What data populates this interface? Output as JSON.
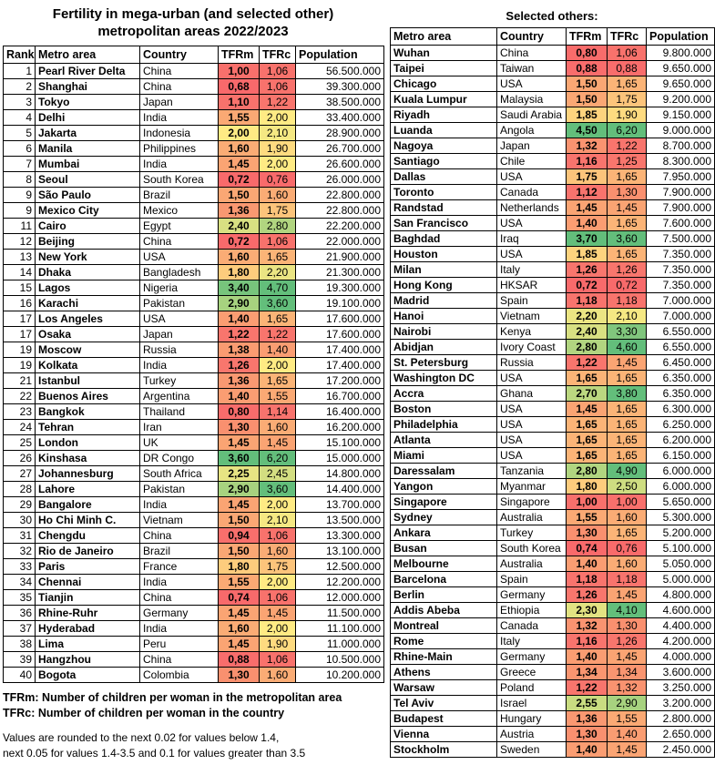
{
  "title_line1": "Fertility in mega-urban (and selected other)",
  "title_line2": "metropolitan areas 2022/2023",
  "right_heading": "Selected others:",
  "footnotes": {
    "tfrm_legend": "TFRm: Number of children per woman in the metropolitan area",
    "tfrc_legend": "TFRc: Number of children per woman in the country",
    "rounding_line1": "Values are rounded to the next 0.02 for values below 1.4,",
    "rounding_line2": "next 0.05 for values 1.4-3.5 and 0.1 for values greater than 3.5"
  },
  "colors": {
    "scale_red": "#F8696B",
    "scale_yellow": "#FFEB84",
    "scale_green": "#63BE7B",
    "border": "#000000",
    "scale_stops": [
      {
        "value": 0.68,
        "hex": "#F8696B"
      },
      {
        "value": 1.26,
        "hex": "#F8766D"
      },
      {
        "value": 1.3,
        "hex": "#F9906F"
      },
      {
        "value": 1.45,
        "hex": "#FAA473"
      },
      {
        "value": 1.6,
        "hex": "#FAAC75"
      },
      {
        "value": 2.0,
        "hex": "#FFEB84"
      },
      {
        "value": 3.6,
        "hex": "#63BE7B"
      }
    ]
  },
  "chart_data": [
    {
      "type": "table",
      "title": "Fertility in mega-urban (and selected other) metropolitan areas 2022/2023",
      "columns": [
        "Rank",
        "Metro area",
        "Country",
        "TFRm",
        "TFRc",
        "Population"
      ],
      "rows": [
        [
          "1",
          "Pearl River Delta",
          "China",
          "1,00",
          "1,06",
          "56.500.000"
        ],
        [
          "2",
          "Shanghai",
          "China",
          "0,68",
          "1,06",
          "39.300.000"
        ],
        [
          "3",
          "Tokyo",
          "Japan",
          "1,10",
          "1,22",
          "38.500.000"
        ],
        [
          "4",
          "Delhi",
          "India",
          "1,55",
          "2,00",
          "33.400.000"
        ],
        [
          "5",
          "Jakarta",
          "Indonesia",
          "2,00",
          "2,10",
          "28.900.000"
        ],
        [
          "6",
          "Manila",
          "Philippines",
          "1,60",
          "1,90",
          "26.700.000"
        ],
        [
          "7",
          "Mumbai",
          "India",
          "1,45",
          "2,00",
          "26.600.000"
        ],
        [
          "8",
          "Seoul",
          "South Korea",
          "0,72",
          "0,76",
          "26.000.000"
        ],
        [
          "9",
          "São Paulo",
          "Brazil",
          "1,50",
          "1,60",
          "22.800.000"
        ],
        [
          "9",
          "Mexico City",
          "Mexico",
          "1,36",
          "1,75",
          "22.800.000"
        ],
        [
          "11",
          "Cairo",
          "Egypt",
          "2,40",
          "2,80",
          "22.200.000"
        ],
        [
          "12",
          "Beijing",
          "China",
          "0,72",
          "1,06",
          "22.000.000"
        ],
        [
          "13",
          "New York",
          "USA",
          "1,60",
          "1,65",
          "21.900.000"
        ],
        [
          "14",
          "Dhaka",
          "Bangladesh",
          "1,80",
          "2,20",
          "21.300.000"
        ],
        [
          "15",
          "Lagos",
          "Nigeria",
          "3,40",
          "4,70",
          "19.300.000"
        ],
        [
          "16",
          "Karachi",
          "Pakistan",
          "2,90",
          "3,60",
          "19.100.000"
        ],
        [
          "17",
          "Los Angeles",
          "USA",
          "1,40",
          "1,65",
          "17.600.000"
        ],
        [
          "17",
          "Osaka",
          "Japan",
          "1,22",
          "1,22",
          "17.600.000"
        ],
        [
          "19",
          "Moscow",
          "Russia",
          "1,38",
          "1,40",
          "17.400.000"
        ],
        [
          "19",
          "Kolkata",
          "India",
          "1,26",
          "2,00",
          "17.400.000"
        ],
        [
          "21",
          "Istanbul",
          "Turkey",
          "1,36",
          "1,65",
          "17.200.000"
        ],
        [
          "22",
          "Buenos Aires",
          "Argentina",
          "1,40",
          "1,55",
          "16.700.000"
        ],
        [
          "23",
          "Bangkok",
          "Thailand",
          "0,80",
          "1,14",
          "16.400.000"
        ],
        [
          "24",
          "Tehran",
          "Iran",
          "1,30",
          "1,60",
          "16.200.000"
        ],
        [
          "25",
          "London",
          "UK",
          "1,45",
          "1,45",
          "15.100.000"
        ],
        [
          "26",
          "Kinshasa",
          "DR Congo",
          "3,60",
          "6,20",
          "15.000.000"
        ],
        [
          "27",
          "Johannesburg",
          "South Africa",
          "2,25",
          "2,45",
          "14.800.000"
        ],
        [
          "28",
          "Lahore",
          "Pakistan",
          "2,90",
          "3,60",
          "14.400.000"
        ],
        [
          "29",
          "Bangalore",
          "India",
          "1,45",
          "2,00",
          "13.700.000"
        ],
        [
          "30",
          "Ho Chi Minh C.",
          "Vietnam",
          "1,50",
          "2,10",
          "13.500.000"
        ],
        [
          "31",
          "Chengdu",
          "China",
          "0,94",
          "1,06",
          "13.300.000"
        ],
        [
          "32",
          "Rio de Janeiro",
          "Brazil",
          "1,50",
          "1,60",
          "13.100.000"
        ],
        [
          "33",
          "Paris",
          "France",
          "1,80",
          "1,75",
          "12.500.000"
        ],
        [
          "34",
          "Chennai",
          "India",
          "1,55",
          "2,00",
          "12.200.000"
        ],
        [
          "35",
          "Tianjin",
          "China",
          "0,74",
          "1,06",
          "12.000.000"
        ],
        [
          "36",
          "Rhine-Ruhr",
          "Germany",
          "1,45",
          "1,45",
          "11.500.000"
        ],
        [
          "37",
          "Hyderabad",
          "India",
          "1,60",
          "2,00",
          "11.100.000"
        ],
        [
          "38",
          "Lima",
          "Peru",
          "1,45",
          "1,90",
          "11.000.000"
        ],
        [
          "39",
          "Hangzhou",
          "China",
          "0,88",
          "1,06",
          "10.500.000"
        ],
        [
          "40",
          "Bogota",
          "Colombia",
          "1,30",
          "1,60",
          "10.200.000"
        ]
      ]
    },
    {
      "type": "table",
      "title": "Selected others:",
      "columns": [
        "Metro area",
        "Country",
        "TFRm",
        "TFRc",
        "Population"
      ],
      "rows": [
        [
          "Wuhan",
          "China",
          "0,80",
          "1,06",
          "9.800.000"
        ],
        [
          "Taipei",
          "Taiwan",
          "0,88",
          "0,88",
          "9.650.000"
        ],
        [
          "Chicago",
          "USA",
          "1,50",
          "1,65",
          "9.650.000"
        ],
        [
          "Kuala Lumpur",
          "Malaysia",
          "1,50",
          "1,75",
          "9.200.000"
        ],
        [
          "Riyadh",
          "Saudi Arabia",
          "1,85",
          "1,90",
          "9.150.000"
        ],
        [
          "Luanda",
          "Angola",
          "4,50",
          "6,20",
          "9.000.000"
        ],
        [
          "Nagoya",
          "Japan",
          "1,32",
          "1,22",
          "8.700.000"
        ],
        [
          "Santiago",
          "Chile",
          "1,16",
          "1,25",
          "8.300.000"
        ],
        [
          "Dallas",
          "USA",
          "1,75",
          "1,65",
          "7.950.000"
        ],
        [
          "Toronto",
          "Canada",
          "1,12",
          "1,30",
          "7.900.000"
        ],
        [
          "Randstad",
          "Netherlands",
          "1,45",
          "1,45",
          "7.900.000"
        ],
        [
          "San Francisco",
          "USA",
          "1,40",
          "1,65",
          "7.600.000"
        ],
        [
          "Baghdad",
          "Iraq",
          "3,70",
          "3,60",
          "7.500.000"
        ],
        [
          "Houston",
          "USA",
          "1,85",
          "1,65",
          "7.350.000"
        ],
        [
          "Milan",
          "Italy",
          "1,26",
          "1,26",
          "7.350.000"
        ],
        [
          "Hong Kong",
          "HKSAR",
          "0,72",
          "0,72",
          "7.350.000"
        ],
        [
          "Madrid",
          "Spain",
          "1,18",
          "1,18",
          "7.000.000"
        ],
        [
          "Hanoi",
          "Vietnam",
          "2,20",
          "2,10",
          "7.000.000"
        ],
        [
          "Nairobi",
          "Kenya",
          "2,40",
          "3,30",
          "6.550.000"
        ],
        [
          "Abidjan",
          "Ivory Coast",
          "2,80",
          "4,60",
          "6.550.000"
        ],
        [
          "St. Petersburg",
          "Russia",
          "1,22",
          "1,45",
          "6.450.000"
        ],
        [
          "Washington DC",
          "USA",
          "1,65",
          "1,65",
          "6.350.000"
        ],
        [
          "Accra",
          "Ghana",
          "2,70",
          "3,80",
          "6.350.000"
        ],
        [
          "Boston",
          "USA",
          "1,45",
          "1,65",
          "6.300.000"
        ],
        [
          "Philadelphia",
          "USA",
          "1,65",
          "1,65",
          "6.250.000"
        ],
        [
          "Atlanta",
          "USA",
          "1,65",
          "1,65",
          "6.200.000"
        ],
        [
          "Miami",
          "USA",
          "1,65",
          "1,65",
          "6.150.000"
        ],
        [
          "Daressalam",
          "Tanzania",
          "2,80",
          "4,90",
          "6.000.000"
        ],
        [
          "Yangon",
          "Myanmar",
          "1,80",
          "2,50",
          "6.000.000"
        ],
        [
          "Singapore",
          "Singapore",
          "1,00",
          "1,00",
          "5.650.000"
        ],
        [
          "Sydney",
          "Australia",
          "1,55",
          "1,60",
          "5.300.000"
        ],
        [
          "Ankara",
          "Turkey",
          "1,30",
          "1,65",
          "5.200.000"
        ],
        [
          "Busan",
          "South Korea",
          "0,74",
          "0,76",
          "5.100.000"
        ],
        [
          "Melbourne",
          "Australia",
          "1,40",
          "1,60",
          "5.050.000"
        ],
        [
          "Barcelona",
          "Spain",
          "1,18",
          "1,18",
          "5.000.000"
        ],
        [
          "Berlin",
          "Germany",
          "1,26",
          "1,45",
          "4.800.000"
        ],
        [
          "Addis Abeba",
          "Ethiopia",
          "2,30",
          "4,10",
          "4.600.000"
        ],
        [
          "Montreal",
          "Canada",
          "1,32",
          "1,30",
          "4.400.000"
        ],
        [
          "Rome",
          "Italy",
          "1,16",
          "1,26",
          "4.200.000"
        ],
        [
          "Rhine-Main",
          "Germany",
          "1,40",
          "1,45",
          "4.000.000"
        ],
        [
          "Athens",
          "Greece",
          "1,34",
          "1,34",
          "3.600.000"
        ],
        [
          "Warsaw",
          "Poland",
          "1,22",
          "1,32",
          "3.250.000"
        ],
        [
          "Tel Aviv",
          "Israel",
          "2,55",
          "2,90",
          "3.200.000"
        ],
        [
          "Budapest",
          "Hungary",
          "1,36",
          "1,55",
          "2.800.000"
        ],
        [
          "Vienna",
          "Austria",
          "1,30",
          "1,40",
          "2.650.000"
        ],
        [
          "Stockholm",
          "Sweden",
          "1,40",
          "1,45",
          "2.450.000"
        ]
      ]
    }
  ]
}
